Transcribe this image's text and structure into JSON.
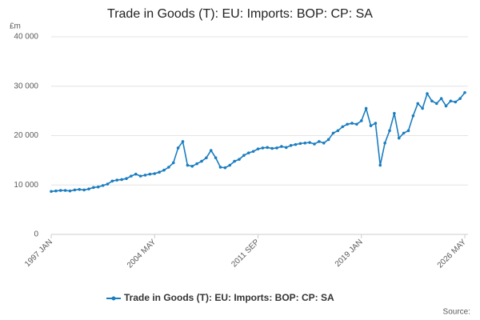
{
  "chart_data": {
    "type": "line",
    "title": "Trade in Goods (T): EU: Imports: BOP: CP: SA",
    "y_label": "£m",
    "source": "Source:",
    "x": [
      1997,
      1997.333,
      1997.667,
      1998,
      1998.333,
      1998.667,
      1999,
      1999.333,
      1999.667,
      2000,
      2000.333,
      2000.667,
      2001,
      2001.333,
      2001.667,
      2002,
      2002.333,
      2002.667,
      2003,
      2003.333,
      2003.667,
      2004,
      2004.333,
      2004.667,
      2005,
      2005.333,
      2005.667,
      2006,
      2006.333,
      2006.667,
      2007,
      2007.333,
      2007.667,
      2008,
      2008.333,
      2008.667,
      2009,
      2009.333,
      2009.667,
      2010,
      2010.333,
      2010.667,
      2011,
      2011.333,
      2011.667,
      2012,
      2012.333,
      2012.667,
      2013,
      2013.333,
      2013.667,
      2014,
      2014.333,
      2014.667,
      2015,
      2015.333,
      2015.667,
      2016,
      2016.333,
      2016.667,
      2017,
      2017.333,
      2017.667,
      2018,
      2018.333,
      2018.667,
      2019,
      2019.333,
      2019.667,
      2020,
      2020.333,
      2020.667,
      2021,
      2021.333,
      2021.667,
      2022,
      2022.333,
      2022.667,
      2023,
      2023.333,
      2023.667,
      2024,
      2024.333,
      2024.667,
      2025,
      2025.333,
      2025.667,
      2026,
      2026.333
    ],
    "series": [
      {
        "name": "Trade in Goods (T): EU: Imports: BOP: CP: SA",
        "color": "#1a7dc0",
        "values": [
          8700,
          8800,
          8900,
          8900,
          8800,
          9000,
          9100,
          9000,
          9200,
          9500,
          9600,
          9900,
          10200,
          10800,
          11000,
          11100,
          11300,
          11800,
          12200,
          11800,
          12000,
          12200,
          12300,
          12600,
          13000,
          13600,
          14500,
          17500,
          18800,
          14000,
          13800,
          14300,
          14800,
          15500,
          17000,
          15500,
          13600,
          13500,
          14000,
          14800,
          15200,
          16000,
          16500,
          16800,
          17300,
          17500,
          17600,
          17400,
          17500,
          17800,
          17600,
          18000,
          18200,
          18400,
          18500,
          18600,
          18300,
          18800,
          18500,
          19200,
          20500,
          21000,
          21800,
          22300,
          22500,
          22300,
          23000,
          25500,
          22000,
          22500,
          14000,
          18500,
          21000,
          24500,
          19500,
          20500,
          21000,
          24000,
          26500,
          25500,
          28500,
          27000,
          26500,
          27500,
          26000,
          27000,
          26800,
          27500,
          28700
        ]
      }
    ],
    "xlim": [
      1997,
      2026.333
    ],
    "xticks": [
      {
        "value": 1997,
        "label": "1997 JAN"
      },
      {
        "value": 2004.333,
        "label": "2004 MAY"
      },
      {
        "value": 2011.667,
        "label": "2011 SEP"
      },
      {
        "value": 2019,
        "label": "2019 JAN"
      },
      {
        "value": 2026.333,
        "label": "2026 MAY"
      }
    ],
    "ylim": [
      0,
      40000
    ],
    "yticks": [
      0,
      {
        "value": 10000,
        "label": "10 000"
      },
      {
        "value": 20000,
        "label": "20 000"
      },
      {
        "value": 30000,
        "label": "30 000"
      },
      {
        "value": 40000,
        "label": "40 000"
      }
    ],
    "grid": true
  }
}
